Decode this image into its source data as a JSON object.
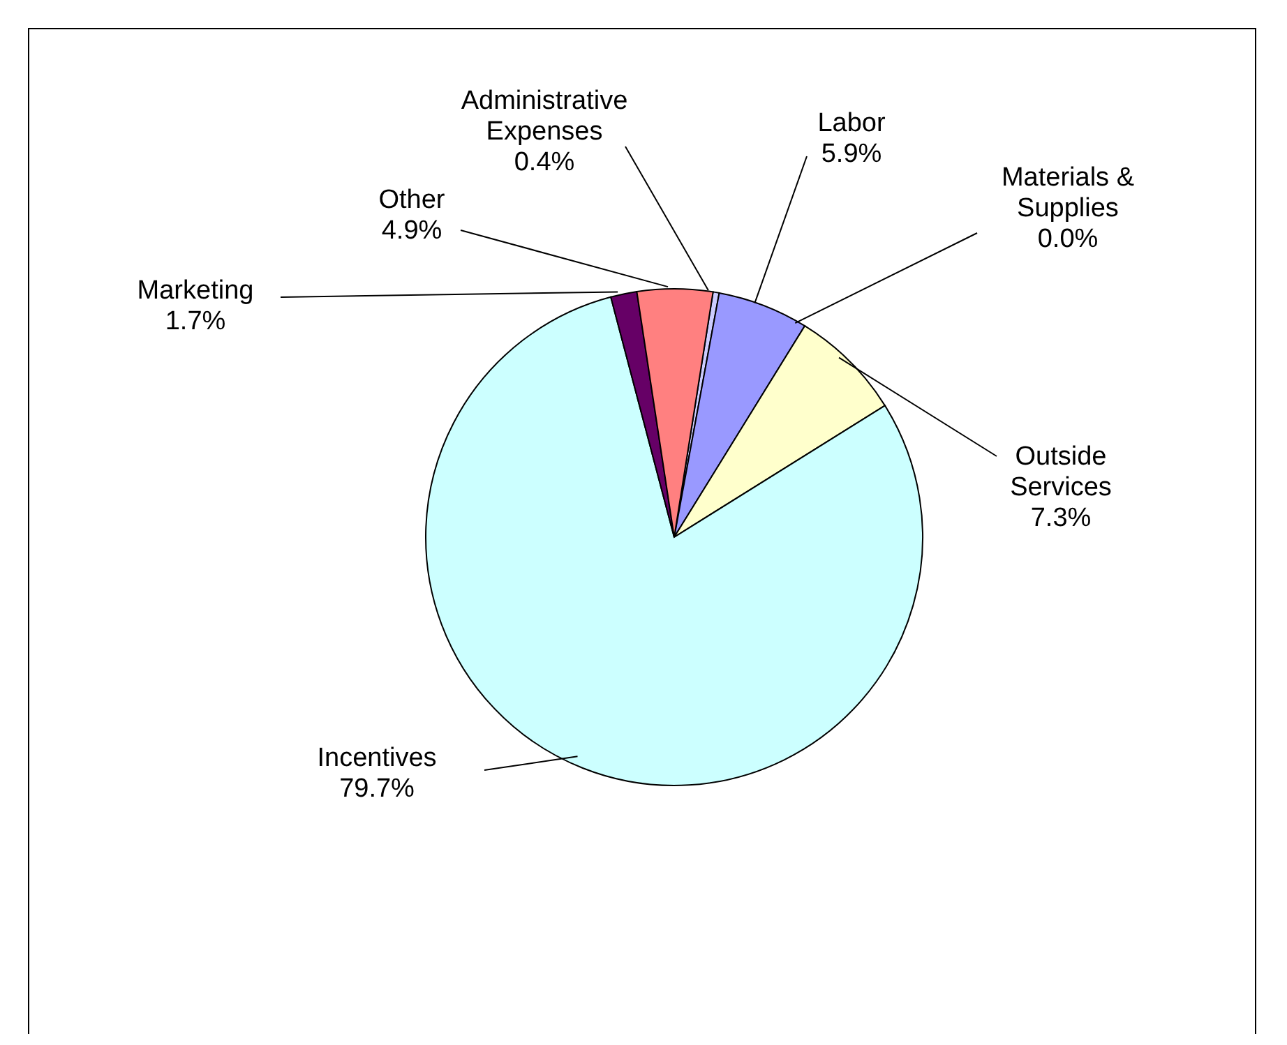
{
  "chart_data": {
    "type": "pie",
    "categories": [
      "Administrative Expenses",
      "Labor",
      "Materials & Supplies",
      "Outside Services",
      "Incentives",
      "Marketing",
      "Other"
    ],
    "values": [
      0.4,
      5.9,
      0.0,
      7.3,
      79.7,
      1.7,
      4.9
    ],
    "colors": [
      "#ccccff",
      "#9999ff",
      "#ffffff",
      "#ffffcc",
      "#ccffff",
      "#660066",
      "#ff8080"
    ],
    "value_labels": [
      "0.4%",
      "5.9%",
      "0.0%",
      "7.3%",
      "79.7%",
      "1.7%",
      "4.9%"
    ]
  }
}
